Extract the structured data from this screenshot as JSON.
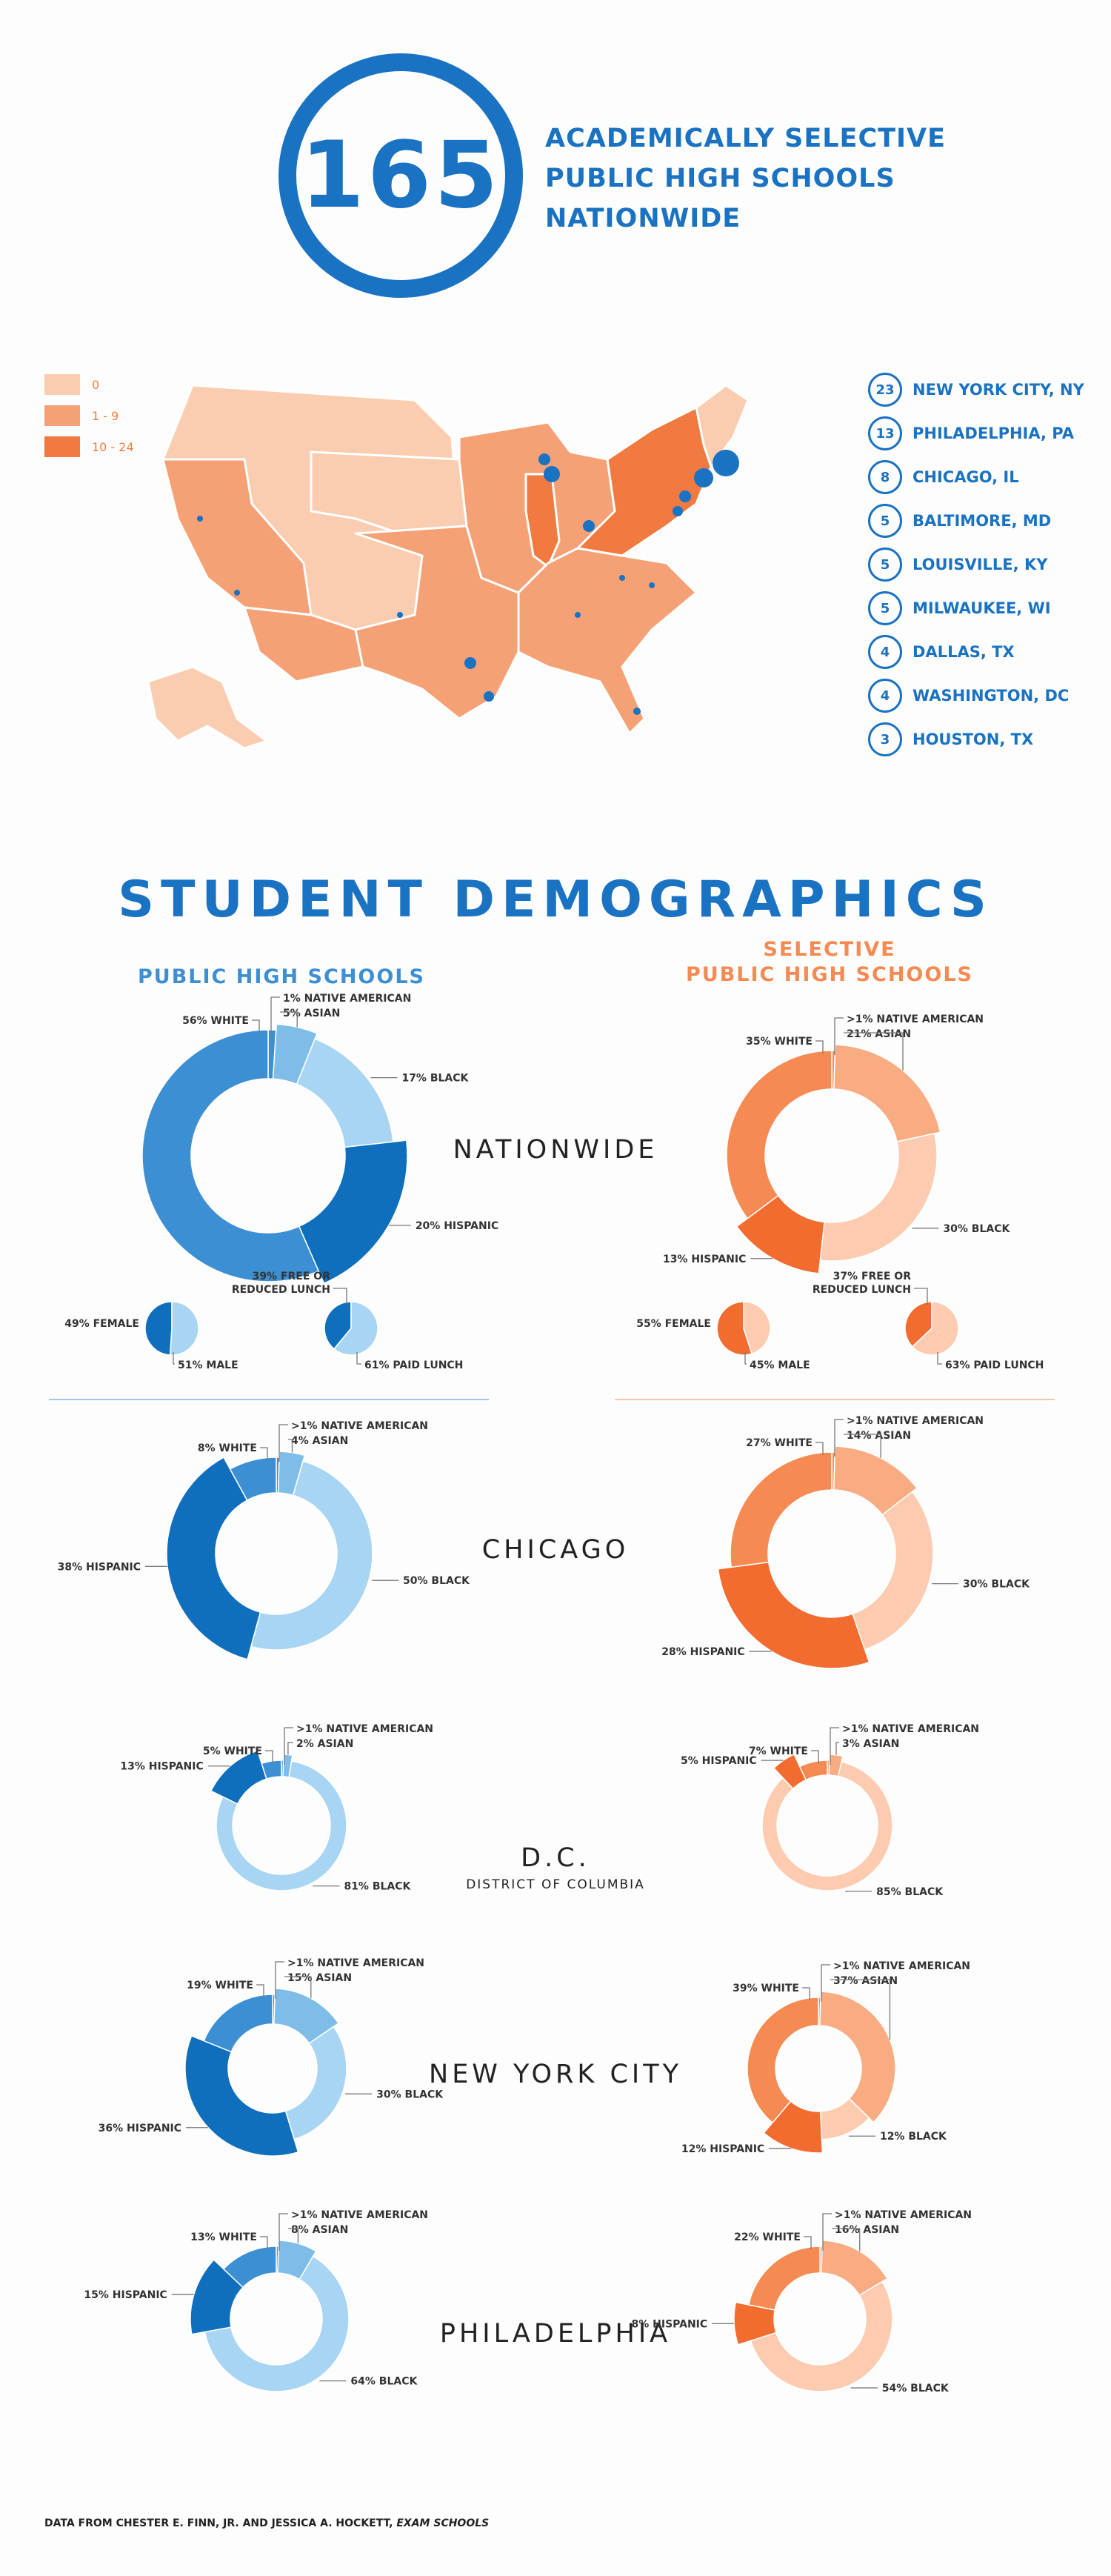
{
  "hero": {
    "count": "165",
    "lines": [
      "ACADEMICALLY SELECTIVE",
      "PUBLIC HIGH SCHOOLS",
      "NATIONWIDE"
    ]
  },
  "map_legend": [
    {
      "label": "0",
      "color": "#fbcdb0"
    },
    {
      "label": "1 - 9",
      "color": "#f5a175"
    },
    {
      "label": "10 - 24",
      "color": "#f07a40"
    }
  ],
  "top_cities": [
    {
      "count": "23",
      "name": "NEW YORK CITY, NY"
    },
    {
      "count": "13",
      "name": "PHILADELPHIA, PA"
    },
    {
      "count": "8",
      "name": "CHICAGO, IL"
    },
    {
      "count": "5",
      "name": "BALTIMORE, MD"
    },
    {
      "count": "5",
      "name": "LOUISVILLE, KY"
    },
    {
      "count": "5",
      "name": "MILWAUKEE, WI"
    },
    {
      "count": "4",
      "name": "DALLAS, TX"
    },
    {
      "count": "4",
      "name": "WASHINGTON, DC"
    },
    {
      "count": "3",
      "name": "HOUSTON, TX"
    }
  ],
  "demographics": {
    "title": "STUDENT DEMOGRAPHICS",
    "col_public": "PUBLIC HIGH SCHOOLS",
    "col_selective_1": "SELECTIVE",
    "col_selective_2": "PUBLIC HIGH SCHOOLS",
    "regions": {
      "nationwide": "NATIONWIDE",
      "chicago": "CHICAGO",
      "dc": "D.C.",
      "dc_sub": "DISTRICT OF COLUMBIA",
      "nyc": "NEW YORK CITY",
      "philadelphia": "PHILADELPHIA"
    }
  },
  "colors": {
    "blue": [
      "#0f6fbd",
      "#3d8fd3",
      "#7fbde9",
      "#a7d5f3"
    ],
    "orange": [
      "#f26c30",
      "#f58a52",
      "#f9ac82",
      "#fccbb0"
    ]
  },
  "chart_data": [
    {
      "type": "pie",
      "id": "public-nationwide",
      "slices": [
        {
          "label": "1% NATIVE AMERICAN",
          "value": 1
        },
        {
          "label": "5% ASIAN",
          "value": 5
        },
        {
          "label": "17% BLACK",
          "value": 17
        },
        {
          "label": "20% HISPANIC",
          "value": 20
        },
        {
          "label": "56% WHITE",
          "value": 56
        }
      ]
    },
    {
      "type": "pie",
      "id": "selective-nationwide",
      "slices": [
        {
          "label": ">1% NATIVE AMERICAN",
          "value": 0.5
        },
        {
          "label": "21% ASIAN",
          "value": 21
        },
        {
          "label": "30% BLACK",
          "value": 30
        },
        {
          "label": "13% HISPANIC",
          "value": 13
        },
        {
          "label": "35% WHITE",
          "value": 35
        }
      ]
    },
    {
      "type": "pie",
      "id": "public-gender",
      "slices": [
        {
          "label": "49% FEMALE",
          "value": 49
        },
        {
          "label": "51% MALE",
          "value": 51
        }
      ]
    },
    {
      "type": "pie",
      "id": "public-lunch",
      "title": [
        "39% FREE OR",
        "REDUCED LUNCH"
      ],
      "slices": [
        {
          "label": "39% FREE OR REDUCED LUNCH",
          "value": 39
        },
        {
          "label": "61% PAID LUNCH",
          "value": 61
        }
      ]
    },
    {
      "type": "pie",
      "id": "selective-gender",
      "slices": [
        {
          "label": "55% FEMALE",
          "value": 55
        },
        {
          "label": "45% MALE",
          "value": 45
        }
      ]
    },
    {
      "type": "pie",
      "id": "selective-lunch",
      "title": [
        "37% FREE OR",
        "REDUCED LUNCH"
      ],
      "slices": [
        {
          "label": "37% FREE OR REDUCED LUNCH",
          "value": 37
        },
        {
          "label": "63% PAID LUNCH",
          "value": 63
        }
      ]
    },
    {
      "type": "pie",
      "id": "public-chicago",
      "slices": [
        {
          "label": ">1% NATIVE AMERICAN",
          "value": 0.5
        },
        {
          "label": "4% ASIAN",
          "value": 4
        },
        {
          "label": "50% BLACK",
          "value": 50
        },
        {
          "label": "38% HISPANIC",
          "value": 38
        },
        {
          "label": "8% WHITE",
          "value": 8
        }
      ]
    },
    {
      "type": "pie",
      "id": "selective-chicago",
      "slices": [
        {
          "label": ">1% NATIVE AMERICAN",
          "value": 0.5
        },
        {
          "label": "14% ASIAN",
          "value": 14
        },
        {
          "label": "30% BLACK",
          "value": 30
        },
        {
          "label": "28% HISPANIC",
          "value": 28
        },
        {
          "label": "27% WHITE",
          "value": 27
        }
      ]
    },
    {
      "type": "pie",
      "id": "public-dc",
      "slices": [
        {
          "label": ">1% NATIVE AMERICAN",
          "value": 0.5
        },
        {
          "label": "2% ASIAN",
          "value": 2
        },
        {
          "label": "81% BLACK",
          "value": 81
        },
        {
          "label": "13% HISPANIC",
          "value": 13
        },
        {
          "label": "5% WHITE",
          "value": 5
        }
      ]
    },
    {
      "type": "pie",
      "id": "selective-dc",
      "slices": [
        {
          "label": ">1% NATIVE AMERICAN",
          "value": 0.5
        },
        {
          "label": "3% ASIAN",
          "value": 3
        },
        {
          "label": "85% BLACK",
          "value": 85
        },
        {
          "label": "5% HISPANIC",
          "value": 5
        },
        {
          "label": "7% WHITE",
          "value": 7
        }
      ]
    },
    {
      "type": "pie",
      "id": "public-nyc",
      "slices": [
        {
          "label": ">1% NATIVE AMERICAN",
          "value": 0.5
        },
        {
          "label": "15% ASIAN",
          "value": 15
        },
        {
          "label": "30% BLACK",
          "value": 30
        },
        {
          "label": "36% HISPANIC",
          "value": 36
        },
        {
          "label": "19% WHITE",
          "value": 19
        }
      ]
    },
    {
      "type": "pie",
      "id": "selective-nyc",
      "slices": [
        {
          "label": ">1% NATIVE AMERICAN",
          "value": 0.5
        },
        {
          "label": "37% ASIAN",
          "value": 37
        },
        {
          "label": "12% BLACK",
          "value": 12
        },
        {
          "label": "12% HISPANIC",
          "value": 12
        },
        {
          "label": "39% WHITE",
          "value": 39
        }
      ]
    },
    {
      "type": "pie",
      "id": "public-philadelphia",
      "slices": [
        {
          "label": ">1% NATIVE AMERICAN",
          "value": 0.5
        },
        {
          "label": "8% ASIAN",
          "value": 8
        },
        {
          "label": "64% BLACK",
          "value": 64
        },
        {
          "label": "15% HISPANIC",
          "value": 15
        },
        {
          "label": "13% WHITE",
          "value": 13
        }
      ]
    },
    {
      "type": "pie",
      "id": "selective-philadelphia",
      "slices": [
        {
          "label": ">1% NATIVE AMERICAN",
          "value": 0.5
        },
        {
          "label": "16% ASIAN",
          "value": 16
        },
        {
          "label": "54% BLACK",
          "value": 54
        },
        {
          "label": "8% HISPANIC",
          "value": 8
        },
        {
          "label": "22% WHITE",
          "value": 22
        }
      ]
    }
  ],
  "source": {
    "prefix": "DATA FROM CHESTER E. FINN, JR. AND JESSICA A. HOCKETT, ",
    "title": "EXAM SCHOOLS"
  }
}
